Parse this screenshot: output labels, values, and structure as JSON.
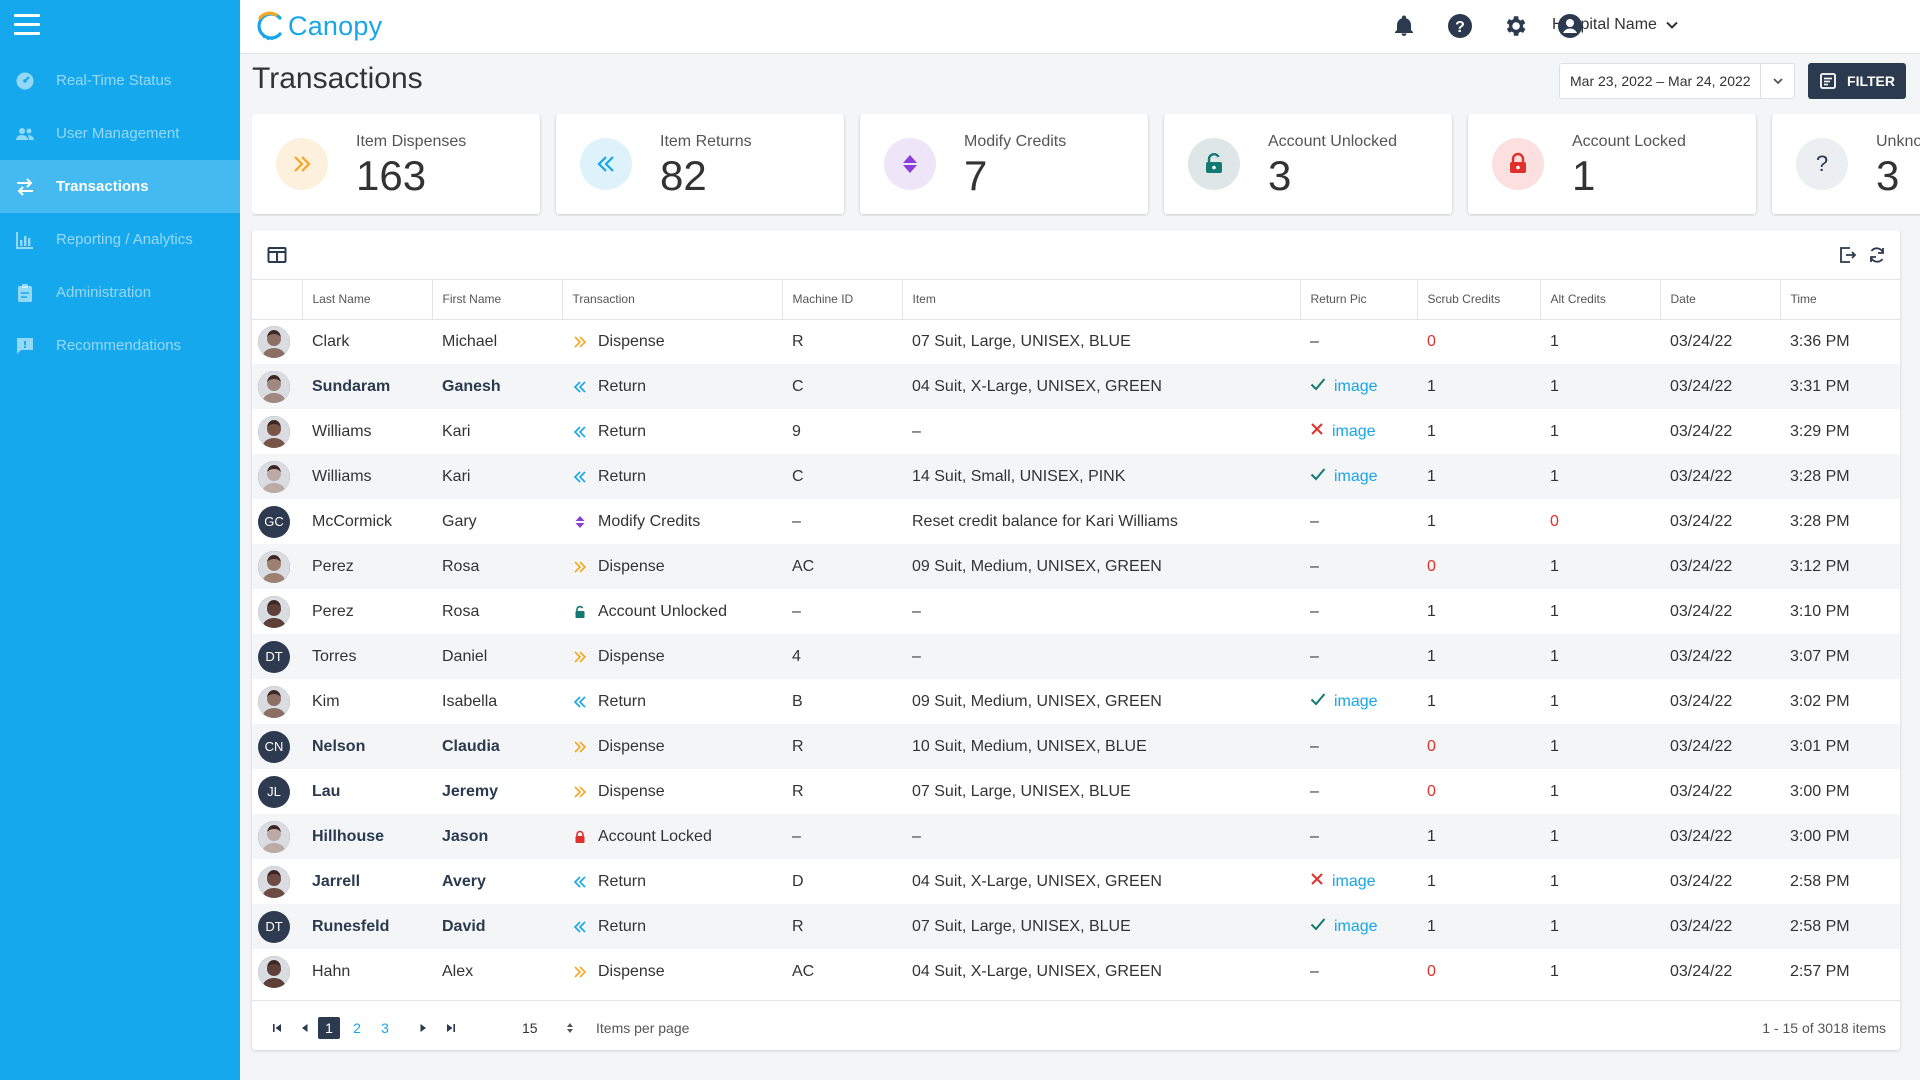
{
  "app": {
    "name": "Canopy",
    "page_title": "Transactions",
    "hospital": "Hospital Name",
    "brand_color": "#16a8ec",
    "dark_color": "#2b3a4e"
  },
  "sidebar": {
    "items": [
      {
        "label": "Real-Time Status",
        "icon": "dashboard-icon"
      },
      {
        "label": "User Management",
        "icon": "users-icon"
      },
      {
        "label": "Transactions",
        "icon": "transfer-icon",
        "active": true
      },
      {
        "label": "Reporting / Analytics",
        "icon": "bar-chart-icon"
      },
      {
        "label": "Administration",
        "icon": "clipboard-icon"
      },
      {
        "label": "Recommendations",
        "icon": "feedback-icon"
      }
    ]
  },
  "toolbar": {
    "date_range": "Mar 23, 2022 – Mar 24, 2022",
    "filter_label": "FILTER"
  },
  "stats": [
    {
      "label": "Item Dispenses",
      "value": "163",
      "icon": "dispense-icon",
      "color": "#f5a623"
    },
    {
      "label": "Item Returns",
      "value": "82",
      "icon": "return-icon",
      "color": "#17a6e8"
    },
    {
      "label": "Modify Credits",
      "value": "7",
      "icon": "modify-credits-icon",
      "color": "#8b3fd9"
    },
    {
      "label": "Account Unlocked",
      "value": "3",
      "icon": "unlock-icon",
      "color": "#127a72"
    },
    {
      "label": "Account Locked",
      "value": "1",
      "icon": "lock-icon",
      "color": "#e0302b"
    },
    {
      "label": "Unknown",
      "value": "3",
      "icon": "question-icon",
      "color": "#2b3a4e"
    }
  ],
  "table": {
    "columns": [
      "Last Name",
      "First Name",
      "Transaction",
      "Machine ID",
      "Item",
      "Return Pic",
      "Scrub Credits",
      "Alt Credits",
      "Date",
      "Time"
    ],
    "rows": [
      {
        "avatar": "photo",
        "last": "Clark",
        "first": "Michael",
        "tx": "Dispense",
        "machine": "R",
        "item": "07 Suit, Large, UNISEX, BLUE",
        "pic": "–",
        "scrub": "0",
        "alt": "1",
        "date": "03/24/22",
        "time": "3:36 PM"
      },
      {
        "avatar": "photo",
        "last": "Sundaram",
        "first": "Ganesh",
        "tx": "Return",
        "machine": "C",
        "item": "04 Suit, X-Large, UNISEX, GREEN",
        "pic": "image",
        "pic_status": "ok",
        "scrub": "1",
        "alt": "1",
        "date": "03/24/22",
        "time": "3:31 PM",
        "bold": true
      },
      {
        "avatar": "photo",
        "last": "Williams",
        "first": "Kari",
        "tx": "Return",
        "machine": "9",
        "item": "–",
        "pic": "image",
        "pic_status": "fail",
        "scrub": "1",
        "alt": "1",
        "date": "03/24/22",
        "time": "3:29 PM"
      },
      {
        "avatar": "photo",
        "last": "Williams",
        "first": "Kari",
        "tx": "Return",
        "machine": "C",
        "item": "14 Suit, Small, UNISEX, PINK",
        "pic": "image",
        "pic_status": "ok",
        "scrub": "1",
        "alt": "1",
        "date": "03/24/22",
        "time": "3:28 PM"
      },
      {
        "avatar": "GC",
        "last": "McCormick",
        "first": "Gary",
        "tx": "Modify Credits",
        "machine": "–",
        "item": "Reset credit balance for Kari Williams",
        "pic": "–",
        "scrub": "1",
        "alt": "0",
        "date": "03/24/22",
        "time": "3:28 PM"
      },
      {
        "avatar": "photo",
        "last": "Perez",
        "first": "Rosa",
        "tx": "Dispense",
        "machine": "AC",
        "item": "09 Suit, Medium, UNISEX, GREEN",
        "pic": "–",
        "scrub": "0",
        "alt": "1",
        "date": "03/24/22",
        "time": "3:12 PM"
      },
      {
        "avatar": "photo",
        "last": "Perez",
        "first": "Rosa",
        "tx": "Account Unlocked",
        "machine": "–",
        "item": "–",
        "pic": "–",
        "scrub": "1",
        "alt": "1",
        "date": "03/24/22",
        "time": "3:10 PM"
      },
      {
        "avatar": "DT",
        "last": "Torres",
        "first": "Daniel",
        "tx": "Dispense",
        "machine": "4",
        "item": "–",
        "pic": "–",
        "scrub": "1",
        "alt": "1",
        "date": "03/24/22",
        "time": "3:07 PM"
      },
      {
        "avatar": "photo",
        "last": "Kim",
        "first": "Isabella",
        "tx": "Return",
        "machine": "B",
        "item": "09 Suit, Medium, UNISEX, GREEN",
        "pic": "image",
        "pic_status": "ok",
        "scrub": "1",
        "alt": "1",
        "date": "03/24/22",
        "time": "3:02 PM"
      },
      {
        "avatar": "CN",
        "last": "Nelson",
        "first": "Claudia",
        "tx": "Dispense",
        "machine": "R",
        "item": "10 Suit, Medium, UNISEX, BLUE",
        "pic": "–",
        "scrub": "0",
        "alt": "1",
        "date": "03/24/22",
        "time": "3:01 PM",
        "bold": true
      },
      {
        "avatar": "JL",
        "last": "Lau",
        "first": "Jeremy",
        "tx": "Dispense",
        "machine": "R",
        "item": "07 Suit, Large, UNISEX, BLUE",
        "pic": "–",
        "scrub": "0",
        "alt": "1",
        "date": "03/24/22",
        "time": "3:00 PM",
        "bold": true
      },
      {
        "avatar": "photo",
        "last": "Hillhouse",
        "first": "Jason",
        "tx": "Account Locked",
        "machine": "–",
        "item": "–",
        "pic": "–",
        "scrub": "1",
        "alt": "1",
        "date": "03/24/22",
        "time": "3:00 PM",
        "bold": true
      },
      {
        "avatar": "photo",
        "last": "Jarrell",
        "first": "Avery",
        "tx": "Return",
        "machine": "D",
        "item": "04 Suit, X-Large, UNISEX, GREEN",
        "pic": "image",
        "pic_status": "fail",
        "scrub": "1",
        "alt": "1",
        "date": "03/24/22",
        "time": "2:58 PM",
        "bold": true
      },
      {
        "avatar": "DT",
        "last": "Runesfeld",
        "first": "David",
        "tx": "Return",
        "machine": "R",
        "item": "07 Suit, Large, UNISEX, BLUE",
        "pic": "image",
        "pic_status": "ok",
        "scrub": "1",
        "alt": "1",
        "date": "03/24/22",
        "time": "2:58 PM",
        "bold": true
      },
      {
        "avatar": "photo",
        "last": "Hahn",
        "first": "Alex",
        "tx": "Dispense",
        "machine": "AC",
        "item": "04 Suit, X-Large, UNISEX, GREEN",
        "pic": "–",
        "scrub": "0",
        "alt": "1",
        "date": "03/24/22",
        "time": "2:57 PM"
      }
    ]
  },
  "pagination": {
    "pages": [
      "1",
      "2",
      "3"
    ],
    "current": "1",
    "per_page": "15",
    "per_page_label": "Items per page",
    "info": "1 - 15 of 3018 items"
  }
}
